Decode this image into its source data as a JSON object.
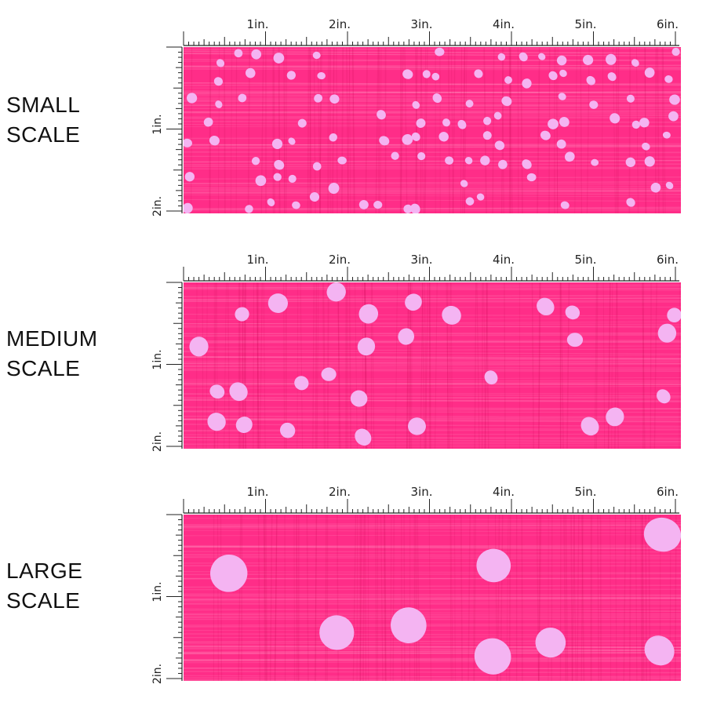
{
  "panels": [
    {
      "key": "small",
      "label_line1": "SMALL",
      "label_line2": "SCALE",
      "dot_count_hint": "many small dots"
    },
    {
      "key": "medium",
      "label_line1": "MEDIUM",
      "label_line2": "SCALE",
      "dot_count_hint": "medium dots"
    },
    {
      "key": "large",
      "label_line1": "LARGE",
      "label_line2": "SCALE",
      "dot_count_hint": "large dots"
    }
  ],
  "ruler": {
    "horizontal_labels": [
      "1in.",
      "2in.",
      "3in.",
      "4in.",
      "5in.",
      "6in."
    ],
    "vertical_labels": [
      "1in.",
      "2in."
    ]
  },
  "colors": {
    "fabric_pink": "#ff2d88",
    "dot_lavender": "#f4b4f2",
    "ruler_ink": "#222222"
  }
}
